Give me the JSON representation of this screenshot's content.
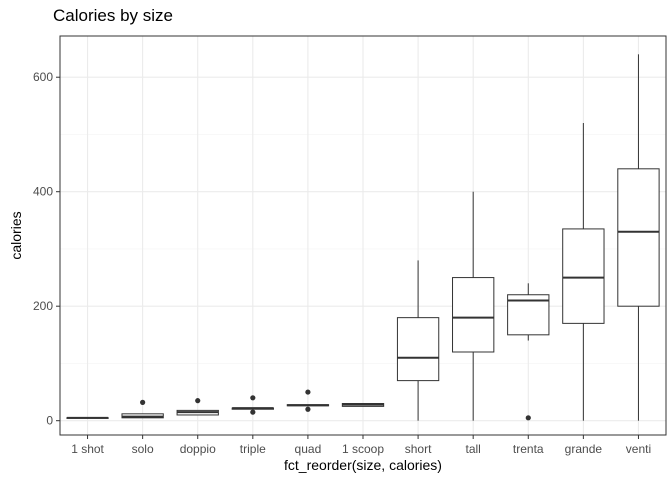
{
  "chart_data": {
    "type": "boxplot",
    "title": "Calories by size",
    "xlabel": "fct_reorder(size, calories)",
    "ylabel": "calories",
    "ylim": [
      -25,
      672
    ],
    "yticks": [
      0,
      200,
      400,
      600
    ],
    "grid": true,
    "legend": "none",
    "colors": {
      "box_line": "#333333",
      "grid_major": "#ebebeb",
      "grid_minor": "#f5f5f5",
      "panel_border": "#333333",
      "background": "#ffffff"
    },
    "categories": [
      "1 shot",
      "solo",
      "doppio",
      "triple",
      "quad",
      "1 scoop",
      "short",
      "tall",
      "trenta",
      "grande",
      "venti"
    ],
    "boxes": [
      {
        "category": "1 shot",
        "whisker_low": 5,
        "q1": 5,
        "median": 5,
        "q3": 5,
        "whisker_high": 5,
        "outliers": []
      },
      {
        "category": "solo",
        "whisker_low": 5,
        "q1": 5,
        "median": 7,
        "q3": 12,
        "whisker_high": 12,
        "outliers": [
          32
        ]
      },
      {
        "category": "doppio",
        "whisker_low": 10,
        "q1": 10,
        "median": 15,
        "q3": 18,
        "whisker_high": 18,
        "outliers": [
          35
        ]
      },
      {
        "category": "triple",
        "whisker_low": 20,
        "q1": 20,
        "median": 22,
        "q3": 22,
        "whisker_high": 22,
        "outliers": [
          15,
          40
        ]
      },
      {
        "category": "quad",
        "whisker_low": 26,
        "q1": 26,
        "median": 27,
        "q3": 28,
        "whisker_high": 28,
        "outliers": [
          20,
          50
        ]
      },
      {
        "category": "1 scoop",
        "whisker_low": 25,
        "q1": 25,
        "median": 28,
        "q3": 30,
        "whisker_high": 30,
        "outliers": []
      },
      {
        "category": "short",
        "whisker_low": 0,
        "q1": 70,
        "median": 110,
        "q3": 180,
        "whisker_high": 280,
        "outliers": []
      },
      {
        "category": "tall",
        "whisker_low": 0,
        "q1": 120,
        "median": 180,
        "q3": 250,
        "whisker_high": 400,
        "outliers": []
      },
      {
        "category": "trenta",
        "whisker_low": 140,
        "q1": 150,
        "median": 210,
        "q3": 220,
        "whisker_high": 240,
        "outliers": [
          5
        ]
      },
      {
        "category": "grande",
        "whisker_low": 0,
        "q1": 170,
        "median": 250,
        "q3": 335,
        "whisker_high": 520,
        "outliers": []
      },
      {
        "category": "venti",
        "whisker_low": 0,
        "q1": 200,
        "median": 330,
        "q3": 440,
        "whisker_high": 640,
        "outliers": []
      }
    ]
  }
}
